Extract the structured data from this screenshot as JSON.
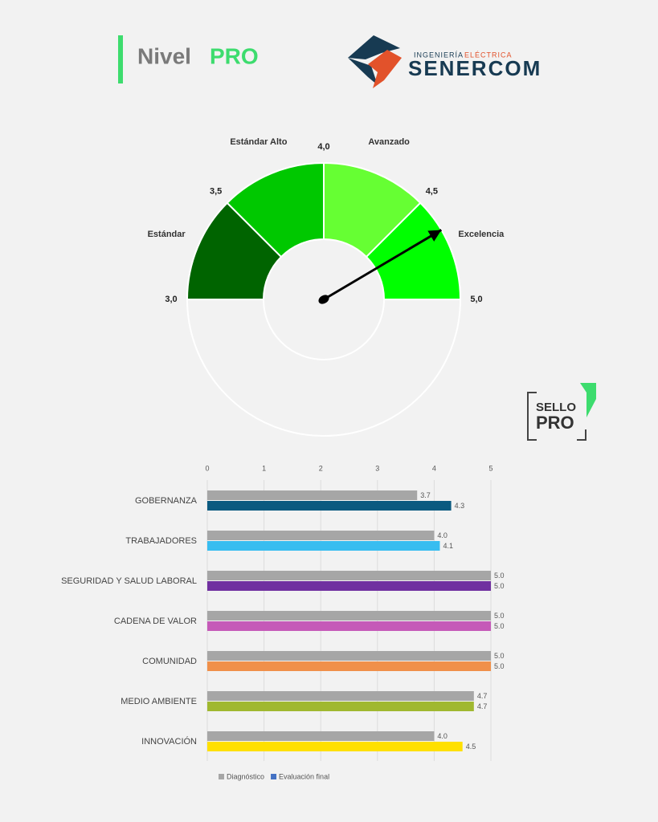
{
  "header": {
    "title_a": "Nivel",
    "title_b": "PRO"
  },
  "logo": {
    "tagline_a": "INGENIERÍA",
    "tagline_b": "ELÉCTRICA",
    "name": "SENERCOM"
  },
  "seal": {
    "line1": "SELLO",
    "line2": "PRO"
  },
  "chart_data": [
    {
      "type": "gauge",
      "categories": [
        "Estándar",
        "Estándar Alto",
        "Avanzado",
        "Excelencia"
      ],
      "values": [
        0.5,
        0.5,
        0.5,
        0.5
      ],
      "colors": [
        "#006400",
        "#00c800",
        "#66ff33",
        "#00ff00"
      ],
      "ylim": [
        3,
        5
      ],
      "yticks": [
        {
          "value": 3,
          "label": "3,0"
        },
        {
          "value": 3.5,
          "label": "3,5"
        },
        {
          "value": 4,
          "label": "4,0"
        },
        {
          "value": 4.5,
          "label": "4,5"
        },
        {
          "value": 5,
          "label": "5,0"
        }
      ],
      "needle": 4.66
    },
    {
      "type": "bar",
      "orientation": "horizontal",
      "categories": [
        "GOBERNANZA",
        "TRABAJADORES",
        "SEGURIDAD Y SALUD LABORAL",
        "CADENA DE VALOR",
        "COMUNIDAD",
        "MEDIO AMBIENTE",
        "INNOVACIÓN"
      ],
      "series": [
        {
          "name": "Diagnóstico",
          "color": "#a6a6a6",
          "values": [
            3.7,
            4,
            5,
            5,
            5,
            4.7,
            4
          ],
          "value_labels": [
            "3.7",
            "4.0",
            "5.0",
            "5.0",
            "5.0",
            "4.7",
            "4.0"
          ]
        },
        {
          "name": "Evaluación final",
          "color": "#4472c4",
          "colors": [
            "#0b5a80",
            "#38bdf0",
            "#7030a0",
            "#c55ab8",
            "#f0904a",
            "#a0b830",
            "#ffe000"
          ],
          "values": [
            4.3,
            4.1,
            5,
            5,
            5,
            4.7,
            4.5
          ],
          "value_labels": [
            "4.3",
            "4.1",
            "5.0",
            "5.0",
            "5.0",
            "4.7",
            "4.5"
          ]
        }
      ],
      "xlim": [
        0,
        5
      ],
      "xticks": [
        0,
        1,
        2,
        3,
        4,
        5
      ],
      "grid": true,
      "legend": "bottom"
    }
  ]
}
